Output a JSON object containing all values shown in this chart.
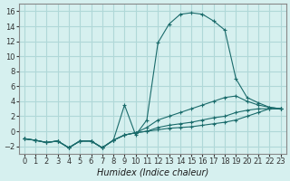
{
  "title": "",
  "xlabel": "Humidex (Indice chaleur)",
  "ylabel": "",
  "background_color": "#d6f0ef",
  "grid_color": "#b0d8d8",
  "line_color": "#1a6b6b",
  "xlim": [
    -0.5,
    23.5
  ],
  "ylim": [
    -3,
    17
  ],
  "xticks": [
    0,
    1,
    2,
    3,
    4,
    5,
    6,
    7,
    8,
    9,
    10,
    11,
    12,
    13,
    14,
    15,
    16,
    17,
    18,
    19,
    20,
    21,
    22,
    23
  ],
  "yticks": [
    -2,
    0,
    2,
    4,
    6,
    8,
    10,
    12,
    14,
    16
  ],
  "series": [
    {
      "x": [
        0,
        1,
        2,
        3,
        4,
        5,
        6,
        7,
        8,
        9,
        10,
        11,
        12,
        13,
        14,
        15,
        16,
        17,
        18,
        19,
        20,
        21,
        22,
        23
      ],
      "y": [
        -1,
        -1.2,
        -1.5,
        -1.3,
        -2.2,
        -1.3,
        -1.3,
        -2.2,
        -1.2,
        3.5,
        -0.5,
        1.5,
        11.8,
        14.3,
        15.6,
        15.8,
        15.6,
        14.7,
        13.5,
        7.0,
        4.5,
        3.8,
        3.2,
        3.0
      ]
    },
    {
      "x": [
        0,
        1,
        2,
        3,
        4,
        5,
        6,
        7,
        8,
        9,
        10,
        11,
        12,
        13,
        14,
        15,
        16,
        17,
        18,
        19,
        20,
        21,
        22,
        23
      ],
      "y": [
        -1,
        -1.2,
        -1.5,
        -1.3,
        -2.2,
        -1.3,
        -1.3,
        -2.2,
        -1.2,
        -0.5,
        -0.2,
        0.5,
        1.5,
        2.0,
        2.5,
        3.0,
        3.5,
        4.0,
        4.5,
        4.7,
        4.0,
        3.5,
        3.2,
        3.0
      ]
    },
    {
      "x": [
        0,
        1,
        2,
        3,
        4,
        5,
        6,
        7,
        8,
        9,
        10,
        11,
        12,
        13,
        14,
        15,
        16,
        17,
        18,
        19,
        20,
        21,
        22,
        23
      ],
      "y": [
        -1,
        -1.2,
        -1.5,
        -1.3,
        -2.2,
        -1.3,
        -1.3,
        -2.2,
        -1.2,
        -0.5,
        -0.2,
        0.0,
        0.5,
        0.8,
        1.0,
        1.2,
        1.5,
        1.8,
        2.0,
        2.5,
        2.8,
        3.0,
        3.0,
        3.0
      ]
    },
    {
      "x": [
        0,
        1,
        2,
        3,
        4,
        5,
        6,
        7,
        8,
        9,
        10,
        11,
        12,
        13,
        14,
        15,
        16,
        17,
        18,
        19,
        20,
        21,
        22,
        23
      ],
      "y": [
        -1,
        -1.2,
        -1.5,
        -1.3,
        -2.2,
        -1.3,
        -1.3,
        -2.2,
        -1.2,
        -0.5,
        -0.2,
        0.0,
        0.2,
        0.4,
        0.5,
        0.6,
        0.8,
        1.0,
        1.2,
        1.5,
        2.0,
        2.5,
        3.0,
        3.0
      ]
    }
  ]
}
